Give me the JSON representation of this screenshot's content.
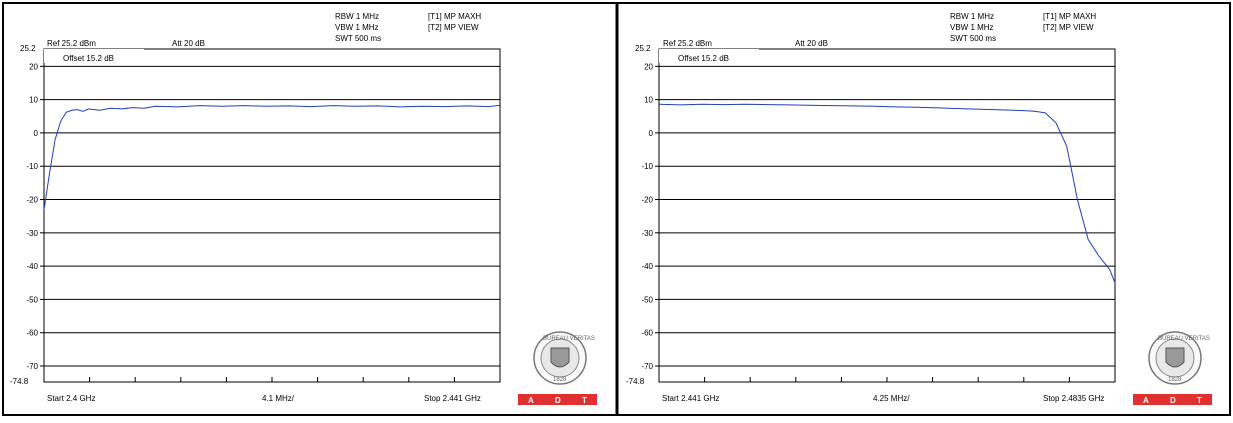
{
  "panels": [
    {
      "rbw": "RBW 1 MHz",
      "vbw": "VBW 1 MHz",
      "swt": "SWT 500 ms",
      "trace1": "[T1] MP MAXH",
      "trace2": "[T2] MP VIEW",
      "ref": "Ref 25.2 dBm",
      "att": "Att  20 dB",
      "offset": "Offset 15.2 dB",
      "ytop_label": "25.2",
      "ybottom_label": "-74.8",
      "start": "Start 2.4 GHz",
      "div": "4.1 MHz/",
      "stop": "Stop 2.441 GHz",
      "badge_letters": [
        "A",
        "D",
        "T"
      ]
    },
    {
      "rbw": "RBW 1 MHz",
      "vbw": "VBW 1 MHz",
      "swt": "SWT 500 ms",
      "trace1": "[T1] MP MAXH",
      "trace2": "[T2] MP VIEW",
      "ref": "Ref 25.2 dBm",
      "att": "Att  20 dB",
      "offset": "Offset 15.2 dB",
      "ytop_label": "25.2",
      "ybottom_label": "-74.8",
      "start": "Start 2.441 GHz",
      "div": "4.25 MHz/",
      "stop": "Stop 2.4835 GHz",
      "badge_letters": [
        "A",
        "D",
        "T"
      ]
    }
  ],
  "colors": {
    "trace": "#1f3fbf",
    "badge_bg": "#e03030",
    "badge_text": "#ffffff",
    "frame": "#000000"
  },
  "chart_data": [
    {
      "type": "line",
      "ylim": [
        -74.8,
        25.2
      ],
      "yticks": [
        20,
        10,
        0,
        -10,
        -20,
        -30,
        -40,
        -50,
        -60,
        -70
      ],
      "ytick_labels": [
        "20",
        "10",
        "0",
        "-10",
        "-20",
        "-30",
        "-40",
        "-50",
        "-60",
        "-70"
      ],
      "xlim": [
        2.4,
        2.441
      ],
      "series": [
        {
          "x": [
            2.4,
            2.4005,
            2.401,
            2.4015,
            2.402,
            2.4025,
            2.403,
            2.4035,
            2.404,
            2.405,
            2.406,
            2.407,
            2.408,
            2.409,
            2.41,
            2.412,
            2.414,
            2.416,
            2.418,
            2.42,
            2.422,
            2.424,
            2.426,
            2.428,
            2.43,
            2.432,
            2.434,
            2.436,
            2.438,
            2.44,
            2.441
          ],
          "y": [
            -23,
            -12,
            -2,
            3.5,
            6.2,
            6.8,
            7.0,
            6.5,
            7.2,
            6.8,
            7.4,
            7.2,
            7.6,
            7.4,
            8.0,
            7.8,
            8.2,
            8.0,
            8.2,
            8.0,
            8.1,
            7.9,
            8.2,
            8.0,
            8.1,
            7.8,
            8.0,
            7.9,
            8.1,
            7.9,
            8.3
          ]
        }
      ]
    },
    {
      "type": "line",
      "ylim": [
        -74.8,
        25.2
      ],
      "yticks": [
        20,
        10,
        0,
        -10,
        -20,
        -30,
        -40,
        -50,
        -60,
        -70
      ],
      "ytick_labels": [
        "20",
        "10",
        "0",
        "-10",
        "-20",
        "-30",
        "-40",
        "-50",
        "-60",
        "-70"
      ],
      "xlim": [
        2.441,
        2.4835
      ],
      "series": [
        {
          "x": [
            2.441,
            2.443,
            2.445,
            2.447,
            2.449,
            2.451,
            2.453,
            2.455,
            2.457,
            2.459,
            2.461,
            2.463,
            2.465,
            2.467,
            2.469,
            2.471,
            2.473,
            2.475,
            2.476,
            2.477,
            2.478,
            2.479,
            2.4795,
            2.48,
            2.4805,
            2.481,
            2.482,
            2.483,
            2.4835
          ],
          "y": [
            8.6,
            8.4,
            8.6,
            8.5,
            8.6,
            8.5,
            8.4,
            8.3,
            8.2,
            8.1,
            8.0,
            7.8,
            7.7,
            7.5,
            7.3,
            7.1,
            6.9,
            6.7,
            6.5,
            6.0,
            3.0,
            -4.0,
            -12.0,
            -20.0,
            -26.0,
            -32.0,
            -37.0,
            -41.0,
            -45.0
          ]
        }
      ]
    }
  ]
}
